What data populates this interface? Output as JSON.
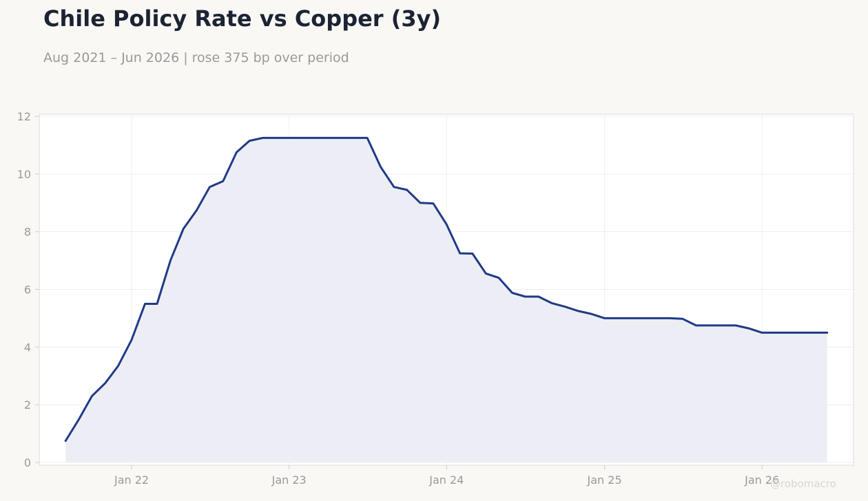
{
  "header": {
    "title": "Chile Policy Rate vs Copper (3y)",
    "subtitle": "Aug 2021 – Jun 2026 | rose 375 bp over period"
  },
  "watermark": "@robomacro",
  "colors": {
    "line": "#1f3a87",
    "fill": "#edeef5",
    "plot_bg": "#ffffff",
    "grid": "#efefef",
    "axis_text": "#999999"
  },
  "chart_data": {
    "type": "area",
    "title": "Chile Policy Rate vs Copper (3y)",
    "subtitle": "Aug 2021 – Jun 2026 | rose 375 bp over period",
    "xlabel": "",
    "ylabel": "",
    "ylim": [
      0,
      12
    ],
    "yticks": [
      0,
      2,
      4,
      6,
      8,
      10,
      12
    ],
    "xlim": [
      "2021-06-01",
      "2026-08-01"
    ],
    "xticks": [
      {
        "date": "2022-01-01",
        "label": "Jan 22"
      },
      {
        "date": "2023-01-01",
        "label": "Jan 23"
      },
      {
        "date": "2024-01-01",
        "label": "Jan 24"
      },
      {
        "date": "2025-01-01",
        "label": "Jan 25"
      },
      {
        "date": "2026-01-01",
        "label": "Jan 26"
      }
    ],
    "grid": true,
    "series": [
      {
        "points": [
          [
            "2021-08-01",
            0.75
          ],
          [
            "2021-09-01",
            1.5
          ],
          [
            "2021-10-01",
            2.3
          ],
          [
            "2021-11-01",
            2.75
          ],
          [
            "2021-12-01",
            3.35
          ],
          [
            "2022-01-01",
            4.25
          ],
          [
            "2022-02-01",
            5.5
          ],
          [
            "2022-03-01",
            5.5
          ],
          [
            "2022-04-01",
            7.0
          ],
          [
            "2022-05-01",
            8.1
          ],
          [
            "2022-06-01",
            8.75
          ],
          [
            "2022-07-01",
            9.55
          ],
          [
            "2022-08-01",
            9.75
          ],
          [
            "2022-09-01",
            10.75
          ],
          [
            "2022-10-01",
            11.15
          ],
          [
            "2022-11-01",
            11.25
          ],
          [
            "2022-12-01",
            11.25
          ],
          [
            "2023-01-01",
            11.25
          ],
          [
            "2023-02-01",
            11.25
          ],
          [
            "2023-03-01",
            11.25
          ],
          [
            "2023-04-01",
            11.25
          ],
          [
            "2023-05-01",
            11.25
          ],
          [
            "2023-06-01",
            11.25
          ],
          [
            "2023-07-01",
            11.25
          ],
          [
            "2023-08-01",
            10.25
          ],
          [
            "2023-09-01",
            9.55
          ],
          [
            "2023-10-01",
            9.45
          ],
          [
            "2023-11-01",
            9.0
          ],
          [
            "2023-12-01",
            8.98
          ],
          [
            "2024-01-01",
            8.25
          ],
          [
            "2024-02-01",
            7.25
          ],
          [
            "2024-03-01",
            7.24
          ],
          [
            "2024-04-01",
            6.55
          ],
          [
            "2024-05-01",
            6.4
          ],
          [
            "2024-06-01",
            5.88
          ],
          [
            "2024-07-01",
            5.75
          ],
          [
            "2024-08-01",
            5.75
          ],
          [
            "2024-09-01",
            5.52
          ],
          [
            "2024-10-01",
            5.4
          ],
          [
            "2024-11-01",
            5.25
          ],
          [
            "2024-12-01",
            5.15
          ],
          [
            "2025-01-01",
            5.0
          ],
          [
            "2025-02-01",
            5.0
          ],
          [
            "2025-03-01",
            5.0
          ],
          [
            "2025-04-01",
            5.0
          ],
          [
            "2025-05-01",
            5.0
          ],
          [
            "2025-06-01",
            5.0
          ],
          [
            "2025-07-01",
            4.98
          ],
          [
            "2025-08-01",
            4.75
          ],
          [
            "2025-09-01",
            4.75
          ],
          [
            "2025-10-01",
            4.75
          ],
          [
            "2025-11-01",
            4.75
          ],
          [
            "2025-12-01",
            4.65
          ],
          [
            "2026-01-01",
            4.5
          ],
          [
            "2026-02-01",
            4.5
          ],
          [
            "2026-03-01",
            4.5
          ],
          [
            "2026-04-01",
            4.5
          ],
          [
            "2026-05-01",
            4.5
          ],
          [
            "2026-06-01",
            4.5
          ]
        ]
      }
    ]
  }
}
